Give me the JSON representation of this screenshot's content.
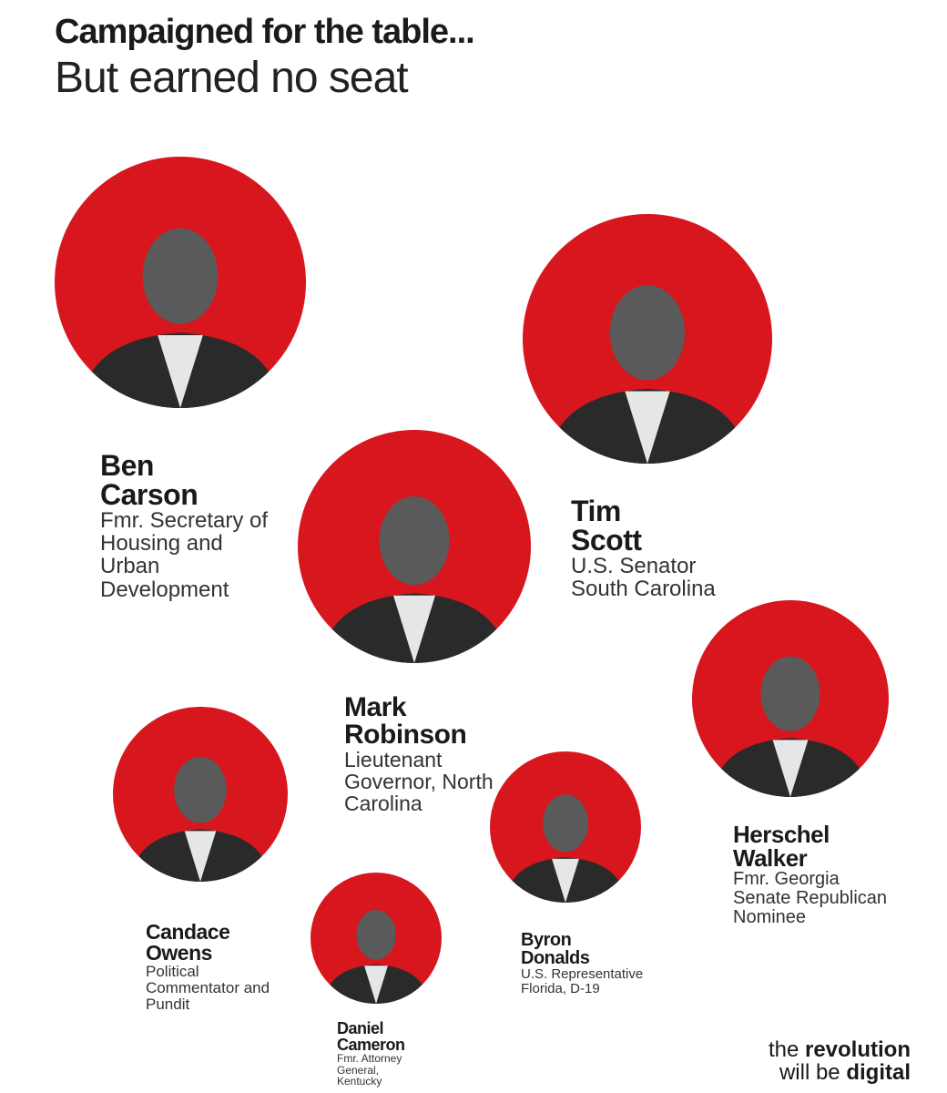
{
  "header": {
    "title": "Campaigned for the table...",
    "subtitle": "But earned no seat"
  },
  "people": [
    {
      "name_lines": [
        "Ben",
        "Carson"
      ],
      "description_lines": [
        "Fmr. Secretary of",
        "Housing and",
        "Urban",
        "Development"
      ]
    },
    {
      "name_lines": [
        "Tim",
        "Scott"
      ],
      "description_lines": [
        "U.S. Senator",
        "South Carolina"
      ]
    },
    {
      "name_lines": [
        "Mark",
        "Robinson"
      ],
      "description_lines": [
        "Lieutenant",
        "Governor, North",
        "Carolina"
      ]
    },
    {
      "name_lines": [
        "Herschel",
        "Walker"
      ],
      "description_lines": [
        "Fmr. Georgia",
        "Senate Republican",
        "Nominee"
      ]
    },
    {
      "name_lines": [
        "Candace",
        "Owens"
      ],
      "description_lines": [
        "Political",
        "Commentator and",
        "Pundit"
      ]
    },
    {
      "name_lines": [
        "Byron",
        "Donalds"
      ],
      "description_lines": [
        "U.S. Representative",
        "Florida, D-19"
      ]
    },
    {
      "name_lines": [
        "Daniel",
        "Cameron"
      ],
      "description_lines": [
        "Fmr. Attorney",
        "General,",
        "Kentucky"
      ]
    }
  ],
  "footer": {
    "lines": [
      {
        "plain": "the",
        "bold": "revolution"
      },
      {
        "plain": "will be",
        "bold": "digital"
      }
    ]
  }
}
